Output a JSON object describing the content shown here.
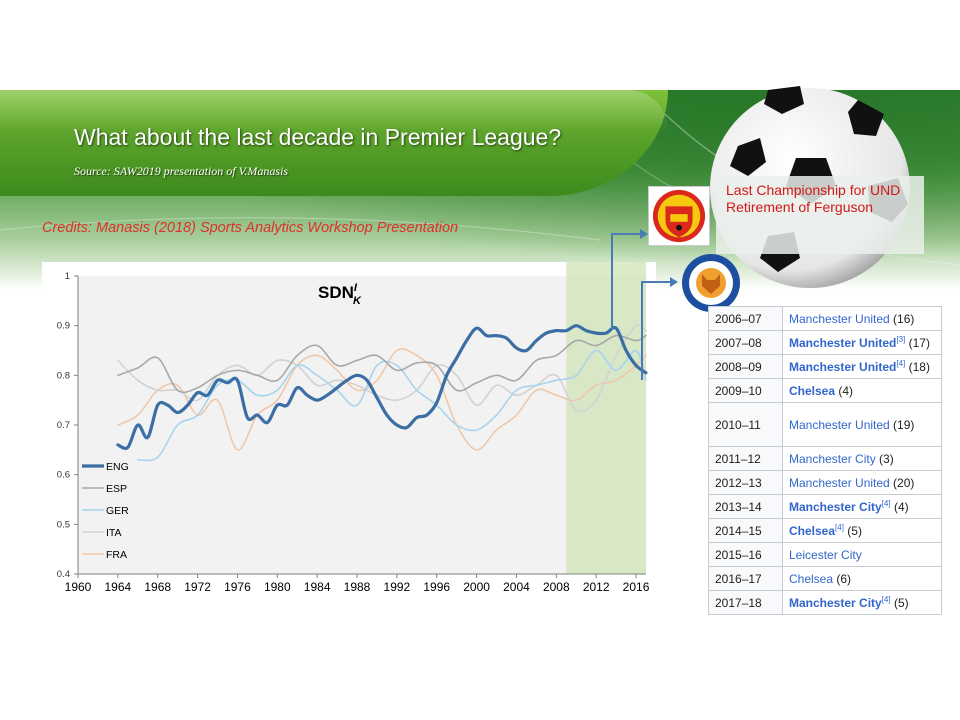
{
  "slide": {
    "title": "What about the last decade in Premier League?",
    "source": "Source: SAW2019 presentation of V.Manasis",
    "credits": "Credits: Manasis (2018) Sports Analytics Workshop Presentation",
    "annotation": "Last Championship for UND Retirement of Ferguson",
    "colors": {
      "banner": "#5aa22a",
      "credits": "#e0302c",
      "annotation": "#d01818",
      "arrow": "#4a7bb7",
      "highlight": "#cfe3b7"
    }
  },
  "champions": [
    {
      "season": "2006–07",
      "club": "Manchester United",
      "bold": false,
      "ref": "",
      "count": "(16)"
    },
    {
      "season": "2007–08",
      "club": "Manchester United",
      "bold": true,
      "ref": "[3]",
      "count": "(17)"
    },
    {
      "season": "2008–09",
      "club": "Manchester United",
      "bold": true,
      "ref": "[4]",
      "count": "(18)"
    },
    {
      "season": "2009–10",
      "club": "Chelsea",
      "bold": true,
      "ref": "",
      "count": "(4)"
    },
    {
      "season": "2010–11",
      "club": "Manchester United",
      "bold": false,
      "ref": "",
      "count": "(19)",
      "tall": true
    },
    {
      "season": "2011–12",
      "club": "Manchester City",
      "bold": false,
      "ref": "",
      "count": "(3)"
    },
    {
      "season": "2012–13",
      "club": "Manchester United",
      "bold": false,
      "ref": "",
      "count": "(20)"
    },
    {
      "season": "2013–14",
      "club": "Manchester City",
      "bold": true,
      "ref": "[4]",
      "count": "(4)"
    },
    {
      "season": "2014–15",
      "club": "Chelsea",
      "bold": true,
      "ref": "[4]",
      "count": "(5)"
    },
    {
      "season": "2015–16",
      "club": "Leicester City",
      "bold": false,
      "ref": "",
      "count": ""
    },
    {
      "season": "2016–17",
      "club": "Chelsea",
      "bold": false,
      "ref": "",
      "count": "(6)"
    },
    {
      "season": "2017–18",
      "club": "Manchester City",
      "bold": true,
      "ref": "[4]",
      "count": "(5)"
    }
  ],
  "chart_data": {
    "type": "line",
    "title": "SDN",
    "title_sup": "I",
    "title_sub": "K",
    "xlim": [
      1960,
      2017
    ],
    "ylim": [
      0.4,
      1.0
    ],
    "xticks": [
      1960,
      1964,
      1968,
      1972,
      1976,
      1980,
      1984,
      1988,
      1992,
      1996,
      2000,
      2004,
      2008,
      2012,
      2016
    ],
    "yticks": [
      0.4,
      0.5,
      0.6,
      0.7,
      0.8,
      0.9,
      1.0
    ],
    "ytick_labels": [
      "0.4",
      "0.5",
      "0.6",
      "0.7",
      "0.8",
      "0.9",
      "1"
    ],
    "highlight": {
      "x_from": 2009,
      "x_to": 2017
    },
    "legend_position": "bottom-left",
    "grid": false,
    "series": [
      {
        "name": "ENG",
        "color": "#3a6ea5",
        "width": 3.2,
        "x": [
          1964,
          1965,
          1966,
          1967,
          1968,
          1969,
          1970,
          1971,
          1972,
          1973,
          1974,
          1975,
          1976,
          1977,
          1978,
          1979,
          1980,
          1981,
          1982,
          1983,
          1984,
          1985,
          1986,
          1987,
          1988,
          1989,
          1990,
          1991,
          1992,
          1993,
          1994,
          1995,
          1996,
          1997,
          1998,
          1999,
          2000,
          2001,
          2002,
          2003,
          2004,
          2005,
          2006,
          2007,
          2008,
          2009,
          2010,
          2011,
          2012,
          2013,
          2014,
          2015,
          2016,
          2017
        ],
        "y": [
          0.66,
          0.655,
          0.7,
          0.675,
          0.74,
          0.74,
          0.725,
          0.74,
          0.765,
          0.76,
          0.79,
          0.785,
          0.79,
          0.715,
          0.72,
          0.705,
          0.74,
          0.74,
          0.775,
          0.76,
          0.75,
          0.76,
          0.775,
          0.79,
          0.8,
          0.79,
          0.755,
          0.72,
          0.7,
          0.695,
          0.715,
          0.72,
          0.745,
          0.8,
          0.835,
          0.87,
          0.895,
          0.88,
          0.88,
          0.875,
          0.855,
          0.85,
          0.87,
          0.885,
          0.89,
          0.89,
          0.9,
          0.89,
          0.885,
          0.885,
          0.895,
          0.85,
          0.82,
          0.805
        ]
      },
      {
        "name": "ESP",
        "color": "#a8a8a8",
        "width": 1.6,
        "x": [
          1964,
          1966,
          1968,
          1970,
          1972,
          1974,
          1976,
          1978,
          1980,
          1982,
          1984,
          1986,
          1988,
          1990,
          1992,
          1994,
          1996,
          1998,
          2000,
          2002,
          2004,
          2006,
          2008,
          2010,
          2012,
          2014,
          2016,
          2017
        ],
        "y": [
          0.8,
          0.815,
          0.835,
          0.77,
          0.775,
          0.8,
          0.81,
          0.8,
          0.79,
          0.84,
          0.86,
          0.82,
          0.83,
          0.84,
          0.81,
          0.825,
          0.82,
          0.77,
          0.785,
          0.8,
          0.79,
          0.83,
          0.84,
          0.87,
          0.86,
          0.88,
          0.87,
          0.88
        ]
      },
      {
        "name": "GER",
        "color": "#a6d4ee",
        "width": 1.6,
        "x": [
          1966,
          1968,
          1970,
          1972,
          1974,
          1976,
          1978,
          1980,
          1982,
          1984,
          1986,
          1988,
          1990,
          1992,
          1994,
          1996,
          1998,
          2000,
          2002,
          2004,
          2006,
          2008,
          2010,
          2012,
          2014,
          2016,
          2017
        ],
        "y": [
          0.63,
          0.635,
          0.7,
          0.72,
          0.78,
          0.79,
          0.76,
          0.77,
          0.82,
          0.8,
          0.77,
          0.74,
          0.82,
          0.82,
          0.77,
          0.74,
          0.7,
          0.69,
          0.72,
          0.77,
          0.78,
          0.79,
          0.8,
          0.85,
          0.81,
          0.85,
          0.79
        ]
      },
      {
        "name": "ITA",
        "color": "#d2d2d2",
        "width": 1.6,
        "x": [
          1964,
          1966,
          1968,
          1970,
          1972,
          1974,
          1976,
          1978,
          1980,
          1982,
          1984,
          1986,
          1988,
          1990,
          1992,
          1994,
          1996,
          1998,
          2000,
          2002,
          2004,
          2006,
          2008,
          2010,
          2012,
          2014,
          2016,
          2017
        ],
        "y": [
          0.83,
          0.79,
          0.77,
          0.77,
          0.75,
          0.8,
          0.82,
          0.8,
          0.83,
          0.82,
          0.78,
          0.79,
          0.78,
          0.76,
          0.75,
          0.77,
          0.82,
          0.8,
          0.74,
          0.78,
          0.76,
          0.78,
          0.8,
          0.73,
          0.75,
          0.84,
          0.9,
          0.89
        ]
      },
      {
        "name": "FRA",
        "color": "#f0c8a8",
        "width": 1.6,
        "x": [
          1964,
          1966,
          1968,
          1970,
          1972,
          1974,
          1976,
          1978,
          1980,
          1982,
          1984,
          1986,
          1988,
          1990,
          1992,
          1994,
          1996,
          1998,
          2000,
          2002,
          2004,
          2006,
          2008,
          2010,
          2012,
          2014,
          2016,
          2017
        ],
        "y": [
          0.7,
          0.72,
          0.77,
          0.78,
          0.72,
          0.75,
          0.65,
          0.72,
          0.75,
          0.82,
          0.84,
          0.81,
          0.77,
          0.79,
          0.85,
          0.84,
          0.8,
          0.7,
          0.65,
          0.69,
          0.72,
          0.77,
          0.76,
          0.75,
          0.78,
          0.79,
          0.82,
          0.84
        ]
      }
    ]
  }
}
